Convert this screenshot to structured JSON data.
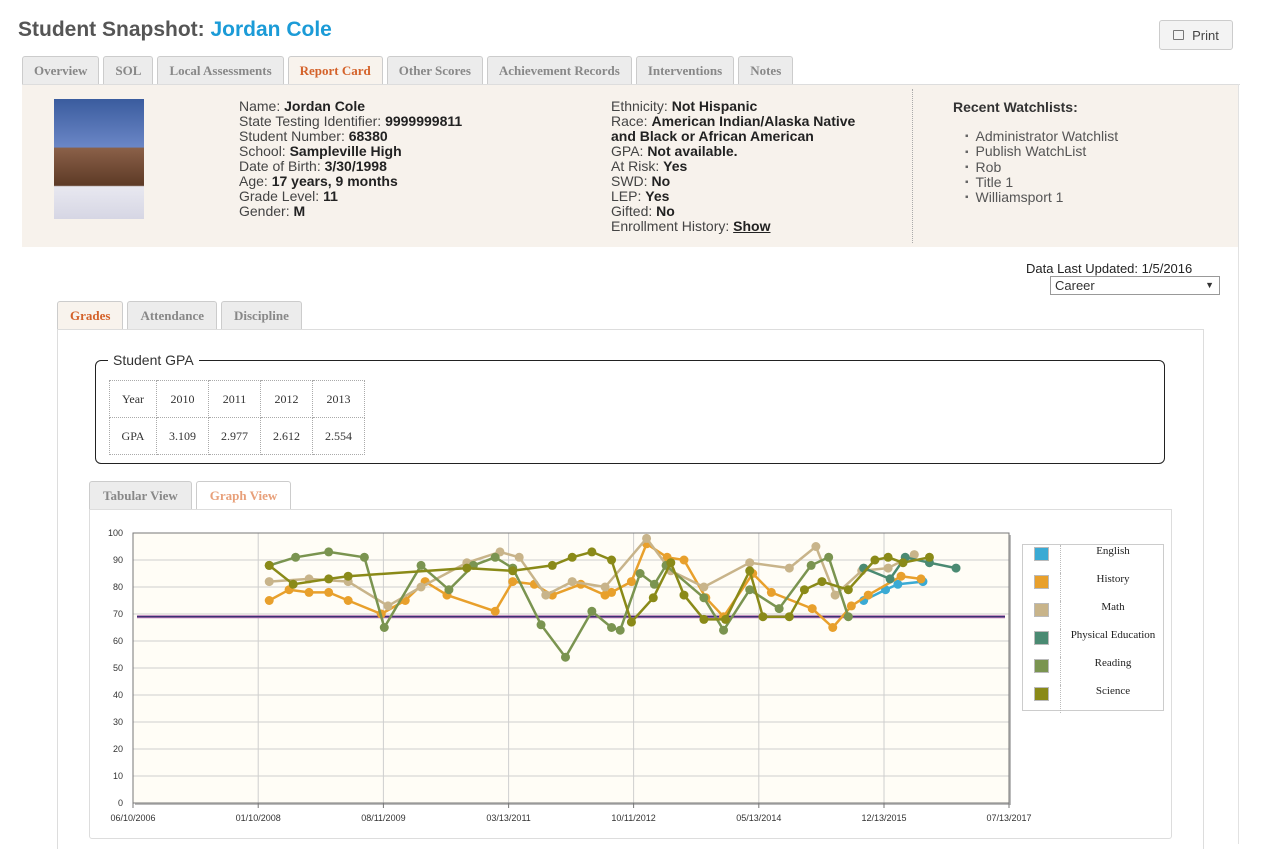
{
  "page": {
    "title_prefix": "Student Snapshot:",
    "student_name": "Jordan Cole",
    "print_label": "Print"
  },
  "main_tabs": [
    "Overview",
    "SOL",
    "Local Assessments",
    "Report Card",
    "Other Scores",
    "Achievement Records",
    "Interventions",
    "Notes"
  ],
  "active_main_tab": "Report Card",
  "student": {
    "name_label": "Name:",
    "name": "Jordan Cole",
    "sti_label": "State Testing Identifier:",
    "sti": "9999999811",
    "number_label": "Student Number:",
    "number": "68380",
    "school_label": "School:",
    "school": "Sampleville High",
    "dob_label": "Date of Birth:",
    "dob": "3/30/1998",
    "age_label": "Age:",
    "age": "17 years, 9 months",
    "grade_label": "Grade Level:",
    "grade": "11",
    "gender_label": "Gender:",
    "gender": "M",
    "ethnicity_label": "Ethnicity:",
    "ethnicity": "Not Hispanic",
    "race_label": "Race:",
    "race_line1": "American Indian/Alaska Native",
    "race_line2": "and Black or African American",
    "gpa_label": "GPA:",
    "gpa": "Not available.",
    "atrisk_label": "At Risk:",
    "atrisk": "Yes",
    "swd_label": "SWD:",
    "swd": "No",
    "lep_label": "LEP:",
    "lep": "Yes",
    "gifted_label": "Gifted:",
    "gifted": "No",
    "enroll_label": "Enrollment History:",
    "enroll_link": "Show"
  },
  "watchlists": {
    "title": "Recent Watchlists:",
    "items": [
      "Administrator Watchlist",
      "Publish WatchList",
      "Rob",
      "Title 1",
      "Williamsport 1"
    ]
  },
  "data_updated": "Data Last Updated: 1/5/2016",
  "period_select": "Career",
  "sub_tabs": [
    "Grades",
    "Attendance",
    "Discipline"
  ],
  "gpa_box": {
    "title": "Student GPA",
    "year_label": "Year",
    "gpa_label": "GPA",
    "years": [
      "2010",
      "2011",
      "2012",
      "2013"
    ],
    "values": [
      "3.109",
      "2.977",
      "2.612",
      "2.554"
    ]
  },
  "view_tabs": [
    "Tabular View",
    "Graph View"
  ],
  "chart_data": {
    "type": "line",
    "ylim": [
      0,
      100
    ],
    "yticks": [
      0,
      10,
      20,
      30,
      40,
      50,
      60,
      70,
      80,
      90,
      100
    ],
    "xlim": [
      "2006-06-10",
      "2017-07-13"
    ],
    "xtick_labels": [
      "06/10/2006",
      "01/10/2008",
      "08/11/2009",
      "03/13/2011",
      "10/11/2012",
      "05/13/2014",
      "12/13/2015",
      "07/13/2017"
    ],
    "xtick_dates": [
      "2006-06-10",
      "2008-01-10",
      "2009-08-11",
      "2011-03-13",
      "2012-10-11",
      "2014-05-13",
      "2015-12-13",
      "2017-07-13"
    ],
    "reference_line": 69,
    "grid": true,
    "legend_position": "right",
    "series": [
      {
        "name": "English",
        "color": "#3aaad4",
        "points": [
          [
            "2015-09-10",
            75
          ],
          [
            "2015-12-20",
            79
          ],
          [
            "2016-02-15",
            81
          ],
          [
            "2016-06-10",
            82
          ]
        ]
      },
      {
        "name": "History",
        "color": "#e8a02c",
        "points": [
          [
            "2008-03-01",
            75
          ],
          [
            "2008-06-01",
            79
          ],
          [
            "2008-09-01",
            78
          ],
          [
            "2008-12-01",
            78
          ],
          [
            "2009-03-01",
            75
          ],
          [
            "2009-08-01",
            70
          ],
          [
            "2009-11-20",
            75
          ],
          [
            "2010-02-20",
            82
          ],
          [
            "2010-06-01",
            77
          ],
          [
            "2011-01-10",
            71
          ],
          [
            "2011-04-01",
            82
          ],
          [
            "2011-07-10",
            81
          ],
          [
            "2011-10-01",
            77
          ],
          [
            "2012-02-10",
            81
          ],
          [
            "2012-06-01",
            77
          ],
          [
            "2012-07-01",
            78
          ],
          [
            "2012-10-01",
            82
          ],
          [
            "2012-12-10",
            96
          ],
          [
            "2013-03-15",
            91
          ],
          [
            "2013-06-01",
            90
          ],
          [
            "2013-09-10",
            76
          ],
          [
            "2013-12-01",
            69
          ],
          [
            "2014-04-15",
            85
          ],
          [
            "2014-07-10",
            78
          ],
          [
            "2015-01-15",
            72
          ],
          [
            "2015-04-20",
            65
          ],
          [
            "2015-07-15",
            73
          ],
          [
            "2015-10-01",
            77
          ],
          [
            "2016-03-01",
            84
          ],
          [
            "2016-06-01",
            83
          ]
        ]
      },
      {
        "name": "Math",
        "color": "#c8b48a",
        "points": [
          [
            "2008-03-01",
            82
          ],
          [
            "2008-09-01",
            83
          ],
          [
            "2009-03-01",
            82
          ],
          [
            "2009-09-01",
            73
          ],
          [
            "2010-02-01",
            80
          ],
          [
            "2010-09-01",
            89
          ],
          [
            "2011-02-01",
            93
          ],
          [
            "2011-05-01",
            91
          ],
          [
            "2011-09-01",
            77
          ],
          [
            "2012-01-01",
            82
          ],
          [
            "2012-06-01",
            80
          ],
          [
            "2012-12-10",
            98
          ],
          [
            "2013-04-01",
            86
          ],
          [
            "2013-09-01",
            80
          ],
          [
            "2014-04-01",
            89
          ],
          [
            "2014-10-01",
            87
          ],
          [
            "2015-02-01",
            95
          ],
          [
            "2015-05-01",
            77
          ],
          [
            "2015-09-01",
            86
          ],
          [
            "2016-01-01",
            87
          ],
          [
            "2016-05-01",
            92
          ]
        ]
      },
      {
        "name": "Physical Education",
        "color": "#4a8a72",
        "points": [
          [
            "2015-09-10",
            87
          ],
          [
            "2016-01-10",
            83
          ],
          [
            "2016-03-20",
            91
          ],
          [
            "2016-07-10",
            89
          ],
          [
            "2016-11-10",
            87
          ]
        ]
      },
      {
        "name": "Reading",
        "color": "#7a9450",
        "points": [
          [
            "2008-03-01",
            88
          ],
          [
            "2008-07-01",
            91
          ],
          [
            "2008-12-01",
            93
          ],
          [
            "2009-05-15",
            91
          ],
          [
            "2009-08-15",
            65
          ],
          [
            "2010-02-01",
            88
          ],
          [
            "2010-06-10",
            79
          ],
          [
            "2010-10-01",
            88
          ],
          [
            "2011-01-10",
            91
          ],
          [
            "2011-04-01",
            87
          ],
          [
            "2011-08-10",
            66
          ],
          [
            "2011-12-01",
            54
          ],
          [
            "2012-04-01",
            71
          ],
          [
            "2012-07-01",
            65
          ],
          [
            "2012-08-10",
            64
          ],
          [
            "2012-11-10",
            85
          ],
          [
            "2013-01-15",
            81
          ],
          [
            "2013-03-10",
            88
          ],
          [
            "2013-09-01",
            76
          ],
          [
            "2013-12-01",
            64
          ],
          [
            "2014-04-01",
            79
          ],
          [
            "2014-08-15",
            72
          ],
          [
            "2015-01-10",
            88
          ],
          [
            "2015-04-01",
            91
          ],
          [
            "2015-07-01",
            69
          ]
        ]
      },
      {
        "name": "Science",
        "color": "#8a8a18",
        "points": [
          [
            "2008-03-01",
            88
          ],
          [
            "2008-06-20",
            81
          ],
          [
            "2008-12-01",
            83
          ],
          [
            "2009-03-01",
            84
          ],
          [
            "2010-09-01",
            87
          ],
          [
            "2011-04-01",
            86
          ],
          [
            "2011-10-01",
            88
          ],
          [
            "2012-01-01",
            91
          ],
          [
            "2012-04-01",
            93
          ],
          [
            "2012-07-01",
            90
          ],
          [
            "2012-10-01",
            67
          ],
          [
            "2013-01-10",
            76
          ],
          [
            "2013-04-01",
            89
          ],
          [
            "2013-06-01",
            77
          ],
          [
            "2013-09-01",
            68
          ],
          [
            "2013-12-10",
            68
          ],
          [
            "2014-04-01",
            86
          ],
          [
            "2014-06-01",
            69
          ],
          [
            "2014-10-01",
            69
          ],
          [
            "2014-12-10",
            79
          ],
          [
            "2015-03-01",
            82
          ],
          [
            "2015-07-01",
            79
          ],
          [
            "2015-11-01",
            90
          ],
          [
            "2016-01-01",
            91
          ],
          [
            "2016-03-10",
            89
          ],
          [
            "2016-07-10",
            91
          ]
        ]
      }
    ]
  }
}
